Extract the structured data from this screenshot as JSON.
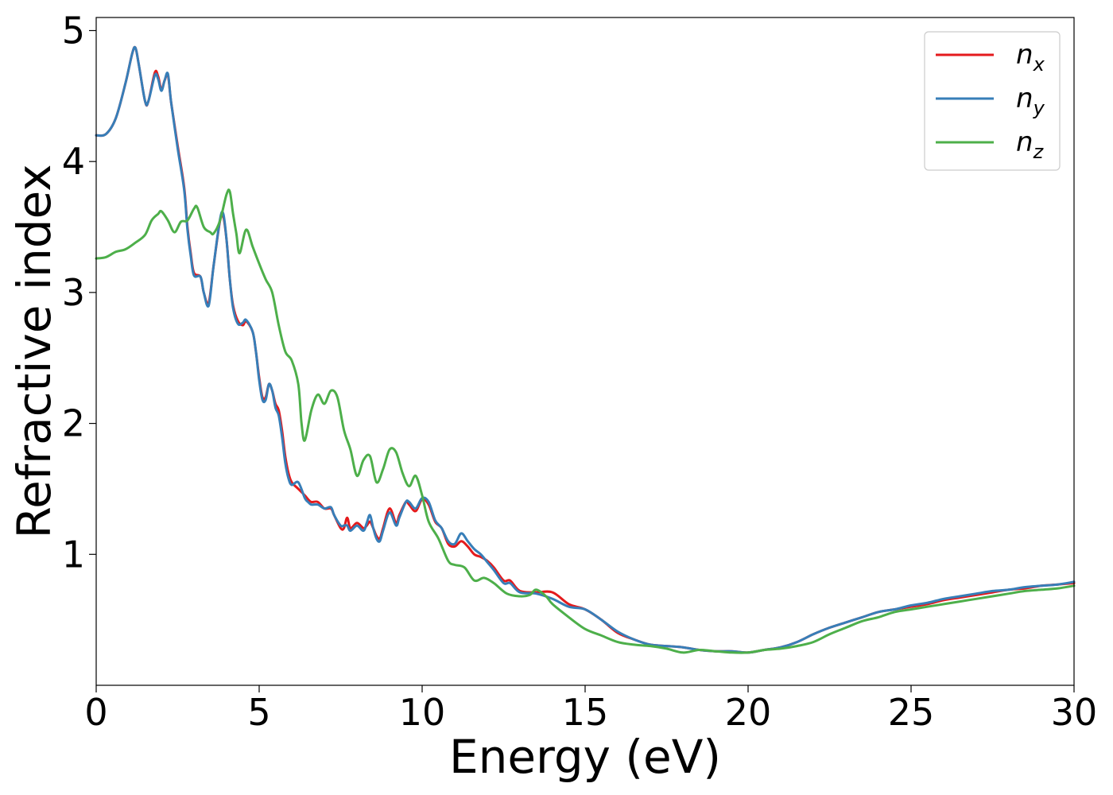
{
  "chart_data": {
    "type": "line",
    "title": "",
    "xlabel": "Energy (eV)",
    "ylabel": "Refractive index",
    "xlim": [
      0,
      30
    ],
    "ylim": [
      0,
      5.1
    ],
    "xticks": [
      0,
      5,
      10,
      15,
      20,
      25,
      30
    ],
    "yticks": [
      1,
      2,
      3,
      4,
      5
    ],
    "xtick_labels": [
      "0",
      "5",
      "10",
      "15",
      "20",
      "25",
      "30"
    ],
    "ytick_labels": [
      "1",
      "2",
      "3",
      "4",
      "5"
    ],
    "grid": false,
    "legend_position": "top-right",
    "series": [
      {
        "name": "n_x",
        "legend_base": "n",
        "legend_sub": "x",
        "color": "#e41a1c",
        "x": [
          0,
          0.3,
          0.6,
          0.9,
          1.1,
          1.2,
          1.3,
          1.5,
          1.6,
          1.8,
          1.9,
          2.0,
          2.1,
          2.2,
          2.3,
          2.5,
          2.7,
          2.8,
          2.9,
          3.0,
          3.2,
          3.3,
          3.45,
          3.6,
          3.8,
          3.9,
          4.0,
          4.1,
          4.2,
          4.35,
          4.5,
          4.6,
          4.8,
          4.9,
          5.0,
          5.1,
          5.2,
          5.3,
          5.4,
          5.5,
          5.6,
          5.7,
          5.8,
          5.9,
          6.0,
          6.2,
          6.4,
          6.5,
          6.6,
          6.8,
          7.0,
          7.2,
          7.3,
          7.5,
          7.6,
          7.7,
          7.8,
          8.0,
          8.2,
          8.3,
          8.4,
          8.5,
          8.6,
          8.7,
          8.8,
          9.0,
          9.2,
          9.3,
          9.5,
          9.6,
          9.8,
          10.0,
          10.2,
          10.4,
          10.6,
          10.8,
          11.0,
          11.2,
          11.4,
          11.6,
          11.8,
          12.0,
          12.2,
          12.5,
          12.7,
          13.0,
          13.5,
          14.0,
          14.5,
          15.0,
          15.5,
          16.0,
          16.5,
          17.0,
          17.5,
          18.0,
          18.5,
          19.0,
          19.5,
          20.0,
          20.5,
          21.0,
          21.5,
          22.0,
          22.5,
          23.0,
          23.5,
          24.0,
          24.5,
          25.0,
          25.5,
          26.0,
          26.5,
          27.0,
          27.5,
          28.0,
          28.5,
          29.0,
          29.5,
          30.0
        ],
        "y": [
          4.2,
          4.21,
          4.33,
          4.6,
          4.82,
          4.87,
          4.75,
          4.46,
          4.46,
          4.68,
          4.65,
          4.55,
          4.62,
          4.66,
          4.45,
          4.12,
          3.8,
          3.5,
          3.3,
          3.15,
          3.12,
          3.0,
          2.92,
          3.2,
          3.55,
          3.58,
          3.4,
          3.1,
          2.9,
          2.78,
          2.75,
          2.78,
          2.7,
          2.55,
          2.35,
          2.2,
          2.2,
          2.3,
          2.25,
          2.15,
          2.1,
          1.95,
          1.75,
          1.62,
          1.55,
          1.5,
          1.45,
          1.42,
          1.4,
          1.4,
          1.35,
          1.35,
          1.3,
          1.2,
          1.2,
          1.28,
          1.2,
          1.24,
          1.2,
          1.22,
          1.25,
          1.2,
          1.14,
          1.12,
          1.2,
          1.35,
          1.24,
          1.3,
          1.4,
          1.38,
          1.33,
          1.42,
          1.38,
          1.25,
          1.2,
          1.08,
          1.06,
          1.1,
          1.06,
          1.0,
          0.98,
          0.95,
          0.9,
          0.8,
          0.8,
          0.72,
          0.71,
          0.71,
          0.62,
          0.58,
          0.5,
          0.4,
          0.35,
          0.31,
          0.3,
          0.29,
          0.27,
          0.26,
          0.26,
          0.25,
          0.27,
          0.29,
          0.33,
          0.39,
          0.44,
          0.48,
          0.52,
          0.56,
          0.58,
          0.6,
          0.62,
          0.65,
          0.67,
          0.69,
          0.71,
          0.73,
          0.74,
          0.76,
          0.77,
          0.78
        ]
      },
      {
        "name": "n_y",
        "legend_base": "n",
        "legend_sub": "y",
        "color": "#377eb8",
        "x": [
          0,
          0.3,
          0.6,
          0.9,
          1.1,
          1.2,
          1.3,
          1.5,
          1.6,
          1.8,
          1.9,
          2.0,
          2.1,
          2.2,
          2.3,
          2.5,
          2.7,
          2.8,
          2.9,
          3.0,
          3.2,
          3.3,
          3.45,
          3.6,
          3.8,
          3.9,
          4.0,
          4.1,
          4.2,
          4.35,
          4.5,
          4.6,
          4.8,
          4.9,
          5.0,
          5.1,
          5.2,
          5.3,
          5.4,
          5.5,
          5.6,
          5.7,
          5.8,
          5.9,
          6.0,
          6.2,
          6.4,
          6.5,
          6.6,
          6.8,
          7.0,
          7.2,
          7.3,
          7.5,
          7.6,
          7.7,
          7.8,
          8.0,
          8.2,
          8.3,
          8.4,
          8.5,
          8.6,
          8.7,
          8.8,
          9.0,
          9.2,
          9.3,
          9.5,
          9.6,
          9.8,
          10.0,
          10.2,
          10.4,
          10.6,
          10.8,
          11.0,
          11.2,
          11.4,
          11.6,
          11.8,
          12.0,
          12.2,
          12.5,
          12.7,
          13.0,
          13.5,
          14.0,
          14.5,
          15.0,
          15.5,
          16.0,
          16.5,
          17.0,
          17.5,
          18.0,
          18.5,
          19.0,
          19.5,
          20.0,
          20.5,
          21.0,
          21.5,
          22.0,
          22.5,
          23.0,
          23.5,
          24.0,
          24.5,
          25.0,
          25.5,
          26.0,
          26.5,
          27.0,
          27.5,
          28.0,
          28.5,
          29.0,
          29.5,
          30.0
        ],
        "y": [
          4.2,
          4.21,
          4.33,
          4.6,
          4.82,
          4.87,
          4.75,
          4.46,
          4.46,
          4.66,
          4.63,
          4.54,
          4.62,
          4.67,
          4.45,
          4.1,
          3.78,
          3.48,
          3.28,
          3.13,
          3.12,
          3.0,
          2.9,
          3.2,
          3.56,
          3.6,
          3.4,
          3.1,
          2.88,
          2.76,
          2.77,
          2.79,
          2.7,
          2.55,
          2.33,
          2.18,
          2.18,
          2.3,
          2.25,
          2.12,
          2.06,
          1.9,
          1.7,
          1.58,
          1.53,
          1.55,
          1.43,
          1.4,
          1.38,
          1.38,
          1.35,
          1.36,
          1.3,
          1.22,
          1.22,
          1.22,
          1.18,
          1.22,
          1.18,
          1.24,
          1.3,
          1.2,
          1.12,
          1.1,
          1.18,
          1.32,
          1.22,
          1.28,
          1.4,
          1.4,
          1.35,
          1.43,
          1.4,
          1.26,
          1.2,
          1.1,
          1.08,
          1.16,
          1.1,
          1.04,
          1.0,
          0.94,
          0.88,
          0.78,
          0.78,
          0.71,
          0.7,
          0.66,
          0.6,
          0.58,
          0.5,
          0.41,
          0.35,
          0.31,
          0.3,
          0.29,
          0.27,
          0.26,
          0.26,
          0.25,
          0.27,
          0.29,
          0.33,
          0.39,
          0.44,
          0.48,
          0.52,
          0.56,
          0.58,
          0.61,
          0.63,
          0.66,
          0.68,
          0.7,
          0.72,
          0.73,
          0.75,
          0.76,
          0.77,
          0.79
        ]
      },
      {
        "name": "n_z",
        "legend_base": "n",
        "legend_sub": "z",
        "color": "#4daf4a",
        "x": [
          0,
          0.3,
          0.6,
          0.9,
          1.2,
          1.5,
          1.7,
          1.9,
          2.0,
          2.2,
          2.4,
          2.6,
          2.8,
          3.0,
          3.1,
          3.3,
          3.5,
          3.6,
          3.8,
          4.0,
          4.1,
          4.2,
          4.3,
          4.4,
          4.6,
          4.8,
          5.0,
          5.2,
          5.4,
          5.6,
          5.8,
          6.0,
          6.2,
          6.3,
          6.4,
          6.6,
          6.8,
          7.0,
          7.2,
          7.4,
          7.6,
          7.8,
          8.0,
          8.2,
          8.4,
          8.6,
          8.8,
          9.0,
          9.2,
          9.4,
          9.6,
          9.8,
          10.0,
          10.2,
          10.5,
          10.8,
          11.0,
          11.3,
          11.6,
          11.9,
          12.2,
          12.6,
          13.0,
          13.3,
          13.5,
          13.8,
          14.0,
          14.5,
          15.0,
          15.5,
          16.0,
          16.5,
          17.0,
          17.5,
          18.0,
          18.5,
          19.0,
          19.5,
          20.0,
          20.5,
          21.0,
          21.5,
          22.0,
          22.5,
          23.0,
          23.5,
          24.0,
          24.5,
          25.0,
          25.5,
          26.0,
          26.5,
          27.0,
          27.5,
          28.0,
          28.5,
          29.0,
          29.5,
          30.0
        ],
        "y": [
          3.26,
          3.27,
          3.31,
          3.33,
          3.38,
          3.44,
          3.55,
          3.6,
          3.62,
          3.55,
          3.46,
          3.54,
          3.55,
          3.64,
          3.65,
          3.5,
          3.46,
          3.45,
          3.55,
          3.75,
          3.77,
          3.6,
          3.45,
          3.3,
          3.48,
          3.35,
          3.22,
          3.1,
          3.0,
          2.75,
          2.55,
          2.48,
          2.3,
          2.0,
          1.87,
          2.1,
          2.22,
          2.15,
          2.25,
          2.2,
          1.95,
          1.8,
          1.6,
          1.72,
          1.75,
          1.55,
          1.65,
          1.8,
          1.78,
          1.62,
          1.52,
          1.6,
          1.45,
          1.25,
          1.12,
          0.95,
          0.92,
          0.9,
          0.8,
          0.82,
          0.78,
          0.7,
          0.68,
          0.69,
          0.73,
          0.68,
          0.62,
          0.52,
          0.43,
          0.38,
          0.33,
          0.31,
          0.3,
          0.28,
          0.25,
          0.27,
          0.26,
          0.25,
          0.25,
          0.27,
          0.28,
          0.3,
          0.33,
          0.39,
          0.44,
          0.49,
          0.52,
          0.56,
          0.58,
          0.6,
          0.62,
          0.64,
          0.66,
          0.68,
          0.7,
          0.72,
          0.73,
          0.74,
          0.76
        ]
      }
    ]
  }
}
